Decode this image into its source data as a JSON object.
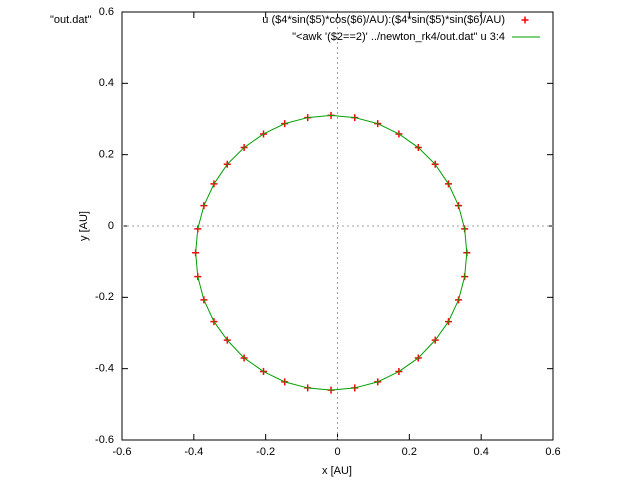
{
  "chart_data": {
    "type": "scatter",
    "title": "\"out.dat\"",
    "x_label": "x [AU]",
    "y_label": "y [AU]",
    "xlim": [
      -0.6,
      0.6
    ],
    "ylim": [
      -0.6,
      0.6
    ],
    "xticks": [
      -0.6,
      -0.4,
      -0.2,
      0,
      0.2,
      0.4,
      0.6
    ],
    "yticks": [
      -0.6,
      -0.4,
      -0.2,
      0,
      0.2,
      0.4,
      0.6
    ],
    "zero_axes": true,
    "legend": "top-right",
    "series": [
      {
        "name": "u ($4*sin($5)*cos($6)/AU):($4*sin($5)*sin($6)/AU)",
        "color": "#ff0000",
        "type": "points",
        "x": [
          0.36,
          0.354,
          0.337,
          0.309,
          0.272,
          0.225,
          0.171,
          0.112,
          0.048,
          -0.018,
          -0.083,
          -0.147,
          -0.206,
          -0.26,
          -0.307,
          -0.344,
          -0.372,
          -0.389,
          -0.395,
          -0.389,
          -0.372,
          -0.344,
          -0.307,
          -0.26,
          -0.206,
          -0.147,
          -0.083,
          -0.018,
          0.048,
          0.112,
          0.171,
          0.225,
          0.272,
          0.309,
          0.337,
          0.354
        ],
        "y": [
          -0.075,
          -0.008,
          0.057,
          0.118,
          0.173,
          0.22,
          0.258,
          0.287,
          0.304,
          0.31,
          0.304,
          0.287,
          0.258,
          0.22,
          0.173,
          0.118,
          0.057,
          -0.008,
          -0.075,
          -0.142,
          -0.207,
          -0.268,
          -0.32,
          -0.37,
          -0.408,
          -0.437,
          -0.454,
          -0.46,
          -0.454,
          -0.437,
          -0.408,
          -0.37,
          -0.32,
          -0.268,
          -0.207,
          -0.142
        ]
      },
      {
        "name": "\"<awk '($2==2)' ../newton_rk4/out.dat\" u 3:4",
        "color": "#00a000",
        "type": "line",
        "x": [
          0.36,
          0.354,
          0.337,
          0.309,
          0.272,
          0.225,
          0.171,
          0.112,
          0.048,
          -0.018,
          -0.083,
          -0.147,
          -0.206,
          -0.26,
          -0.307,
          -0.344,
          -0.372,
          -0.389,
          -0.395,
          -0.389,
          -0.372,
          -0.344,
          -0.307,
          -0.26,
          -0.206,
          -0.147,
          -0.083,
          -0.018,
          0.048,
          0.112,
          0.171,
          0.225,
          0.272,
          0.309,
          0.337,
          0.354,
          0.36
        ],
        "y": [
          -0.075,
          -0.008,
          0.057,
          0.118,
          0.173,
          0.22,
          0.258,
          0.287,
          0.304,
          0.31,
          0.304,
          0.287,
          0.258,
          0.22,
          0.173,
          0.118,
          0.057,
          -0.008,
          -0.075,
          -0.142,
          -0.207,
          -0.268,
          -0.32,
          -0.37,
          -0.408,
          -0.437,
          -0.454,
          -0.46,
          -0.454,
          -0.437,
          -0.408,
          -0.37,
          -0.32,
          -0.268,
          -0.207,
          -0.142,
          -0.075
        ]
      }
    ]
  }
}
